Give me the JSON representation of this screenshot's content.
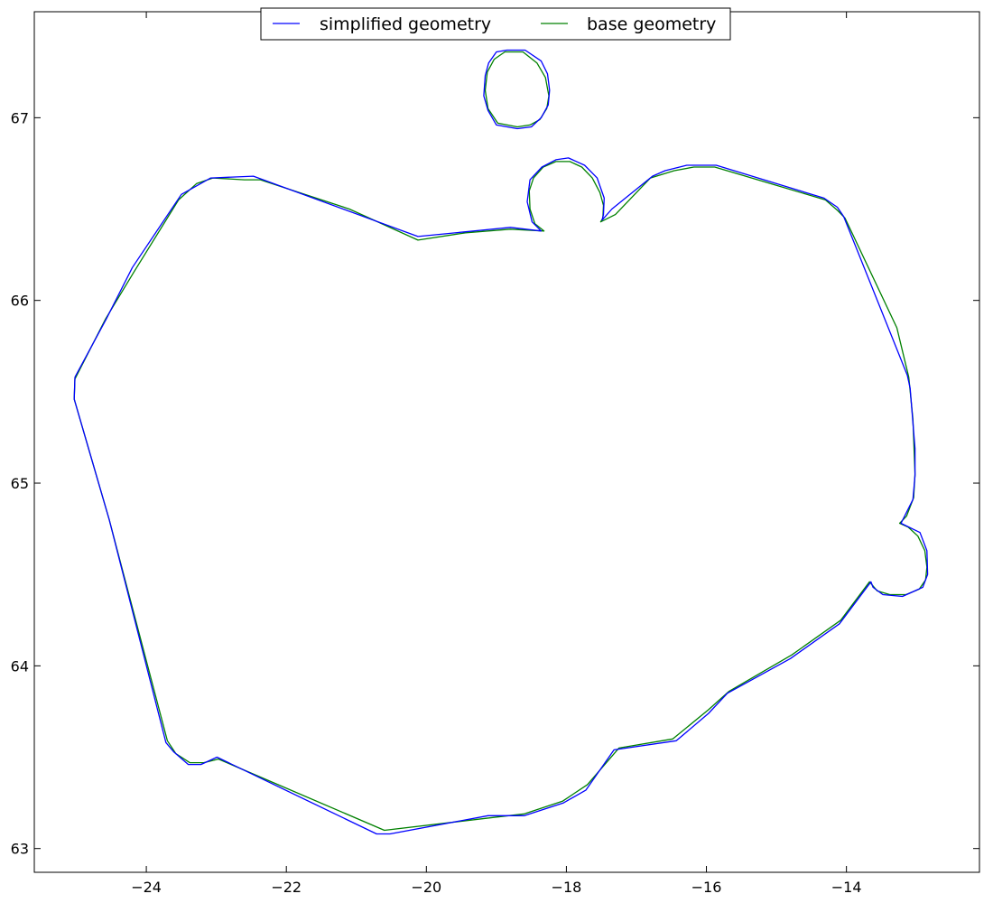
{
  "chart_data": {
    "type": "line",
    "title": "",
    "xlabel": "",
    "ylabel": "",
    "xlim": [
      -25.6,
      -12.1
    ],
    "ylim": [
      62.87,
      67.58
    ],
    "x_ticks": [
      -24,
      -22,
      -20,
      -18,
      -16,
      -14
    ],
    "y_ticks": [
      63,
      64,
      65,
      66,
      67
    ],
    "x_tick_labels": [
      "−24",
      "−22",
      "−20",
      "−18",
      "−16",
      "−14"
    ],
    "y_tick_labels": [
      "63",
      "64",
      "65",
      "66",
      "67"
    ],
    "grid": false,
    "legend_position": "top-center",
    "series": [
      {
        "name": "simplified geometry",
        "color": "#0000ff",
        "paths": [
          [
            [
              -25.02,
              65.58
            ],
            [
              -24.57,
              65.9
            ],
            [
              -24.2,
              66.18
            ],
            [
              -23.5,
              66.58
            ],
            [
              -23.08,
              66.67
            ],
            [
              -22.47,
              66.68
            ],
            [
              -20.12,
              66.35
            ],
            [
              -18.8,
              66.4
            ],
            [
              -18.36,
              66.38
            ],
            [
              -18.49,
              66.43
            ],
            [
              -18.56,
              66.54
            ],
            [
              -18.52,
              66.66
            ],
            [
              -18.35,
              66.73
            ],
            [
              -18.15,
              66.77
            ],
            [
              -17.97,
              66.78
            ],
            [
              -17.74,
              66.74
            ],
            [
              -17.56,
              66.67
            ],
            [
              -17.46,
              66.56
            ],
            [
              -17.47,
              66.47
            ],
            [
              -17.49,
              66.44
            ],
            [
              -17.35,
              66.5
            ],
            [
              -16.77,
              66.68
            ],
            [
              -16.59,
              66.71
            ],
            [
              -16.28,
              66.74
            ],
            [
              -15.86,
              66.74
            ],
            [
              -14.32,
              66.56
            ],
            [
              -14.13,
              66.51
            ],
            [
              -14.04,
              66.46
            ],
            [
              -13.13,
              65.59
            ],
            [
              -13.09,
              65.52
            ],
            [
              -13.02,
              65.19
            ],
            [
              -13.02,
              65.04
            ],
            [
              -13.05,
              64.91
            ],
            [
              -13.22,
              64.78
            ],
            [
              -12.95,
              64.73
            ],
            [
              -12.85,
              64.63
            ],
            [
              -12.84,
              64.5
            ],
            [
              -12.91,
              64.43
            ],
            [
              -13.2,
              64.38
            ],
            [
              -13.48,
              64.39
            ],
            [
              -13.62,
              64.43
            ],
            [
              -13.65,
              64.46
            ],
            [
              -14.1,
              64.23
            ],
            [
              -14.8,
              64.04
            ],
            [
              -15.7,
              63.85
            ],
            [
              -15.97,
              63.74
            ],
            [
              -16.43,
              63.59
            ],
            [
              -17.32,
              63.54
            ],
            [
              -17.72,
              63.32
            ],
            [
              -18.04,
              63.25
            ],
            [
              -18.6,
              63.18
            ],
            [
              -19.12,
              63.18
            ],
            [
              -20.52,
              63.08
            ],
            [
              -20.71,
              63.08
            ],
            [
              -22.99,
              63.5
            ],
            [
              -23.22,
              63.46
            ],
            [
              -23.4,
              63.46
            ],
            [
              -23.61,
              63.53
            ],
            [
              -23.72,
              63.58
            ],
            [
              -24.53,
              64.8
            ],
            [
              -25.03,
              65.46
            ],
            [
              -25.02,
              65.58
            ]
          ],
          [
            [
              -18.7,
              66.94
            ],
            [
              -19.0,
              66.96
            ],
            [
              -19.12,
              67.04
            ],
            [
              -19.18,
              67.12
            ],
            [
              -19.16,
              67.23
            ],
            [
              -19.11,
              67.3
            ],
            [
              -19.0,
              67.36
            ],
            [
              -18.85,
              67.37
            ],
            [
              -18.59,
              67.37
            ],
            [
              -18.36,
              67.31
            ],
            [
              -18.27,
              67.24
            ],
            [
              -18.24,
              67.15
            ],
            [
              -18.26,
              67.07
            ],
            [
              -18.36,
              67.0
            ],
            [
              -18.5,
              66.95
            ],
            [
              -18.7,
              66.94
            ]
          ]
        ]
      },
      {
        "name": "base geometry",
        "color": "#008000",
        "paths": [
          [
            [
              -25.02,
              65.57
            ],
            [
              -24.58,
              65.9
            ],
            [
              -24.17,
              66.16
            ],
            [
              -23.54,
              66.55
            ],
            [
              -23.28,
              66.64
            ],
            [
              -23.05,
              66.67
            ],
            [
              -22.6,
              66.66
            ],
            [
              -22.37,
              66.66
            ],
            [
              -21.1,
              66.5
            ],
            [
              -20.12,
              66.33
            ],
            [
              -19.44,
              66.37
            ],
            [
              -18.8,
              66.39
            ],
            [
              -18.32,
              66.38
            ],
            [
              -18.45,
              66.42
            ],
            [
              -18.52,
              66.5
            ],
            [
              -18.53,
              66.6
            ],
            [
              -18.47,
              66.67
            ],
            [
              -18.33,
              66.73
            ],
            [
              -18.15,
              66.76
            ],
            [
              -17.95,
              66.76
            ],
            [
              -17.78,
              66.73
            ],
            [
              -17.63,
              66.67
            ],
            [
              -17.52,
              66.59
            ],
            [
              -17.47,
              66.52
            ],
            [
              -17.48,
              66.45
            ],
            [
              -17.51,
              66.43
            ],
            [
              -17.3,
              66.47
            ],
            [
              -16.8,
              66.67
            ],
            [
              -16.46,
              66.71
            ],
            [
              -16.18,
              66.73
            ],
            [
              -15.88,
              66.73
            ],
            [
              -15.0,
              66.63
            ],
            [
              -14.3,
              66.55
            ],
            [
              -14.12,
              66.49
            ],
            [
              -14.02,
              66.45
            ],
            [
              -13.28,
              65.85
            ],
            [
              -13.11,
              65.58
            ],
            [
              -13.05,
              65.35
            ],
            [
              -13.02,
              65.05
            ],
            [
              -13.04,
              64.92
            ],
            [
              -13.14,
              64.82
            ],
            [
              -13.24,
              64.78
            ],
            [
              -13.12,
              64.76
            ],
            [
              -12.98,
              64.71
            ],
            [
              -12.88,
              64.63
            ],
            [
              -12.85,
              64.54
            ],
            [
              -12.87,
              64.47
            ],
            [
              -12.96,
              64.42
            ],
            [
              -13.15,
              64.39
            ],
            [
              -13.38,
              64.39
            ],
            [
              -13.56,
              64.41
            ],
            [
              -13.67,
              64.46
            ],
            [
              -14.08,
              64.25
            ],
            [
              -14.78,
              64.06
            ],
            [
              -15.68,
              63.86
            ],
            [
              -15.97,
              63.76
            ],
            [
              -16.48,
              63.6
            ],
            [
              -17.25,
              63.55
            ],
            [
              -17.7,
              63.35
            ],
            [
              -18.05,
              63.26
            ],
            [
              -18.6,
              63.19
            ],
            [
              -19.05,
              63.17
            ],
            [
              -20.6,
              63.1
            ],
            [
              -22.97,
              63.49
            ],
            [
              -23.18,
              63.47
            ],
            [
              -23.38,
              63.47
            ],
            [
              -23.58,
              63.52
            ],
            [
              -23.7,
              63.59
            ],
            [
              -24.53,
              64.8
            ],
            [
              -25.03,
              65.46
            ],
            [
              -25.02,
              65.57
            ]
          ],
          [
            [
              -18.7,
              66.95
            ],
            [
              -18.98,
              66.97
            ],
            [
              -19.12,
              67.05
            ],
            [
              -19.16,
              67.15
            ],
            [
              -19.13,
              67.25
            ],
            [
              -19.03,
              67.32
            ],
            [
              -18.88,
              67.36
            ],
            [
              -18.62,
              67.36
            ],
            [
              -18.42,
              67.3
            ],
            [
              -18.3,
              67.22
            ],
            [
              -18.25,
              67.12
            ],
            [
              -18.28,
              67.05
            ],
            [
              -18.38,
              66.99
            ],
            [
              -18.52,
              66.96
            ],
            [
              -18.7,
              66.95
            ]
          ]
        ]
      }
    ]
  }
}
